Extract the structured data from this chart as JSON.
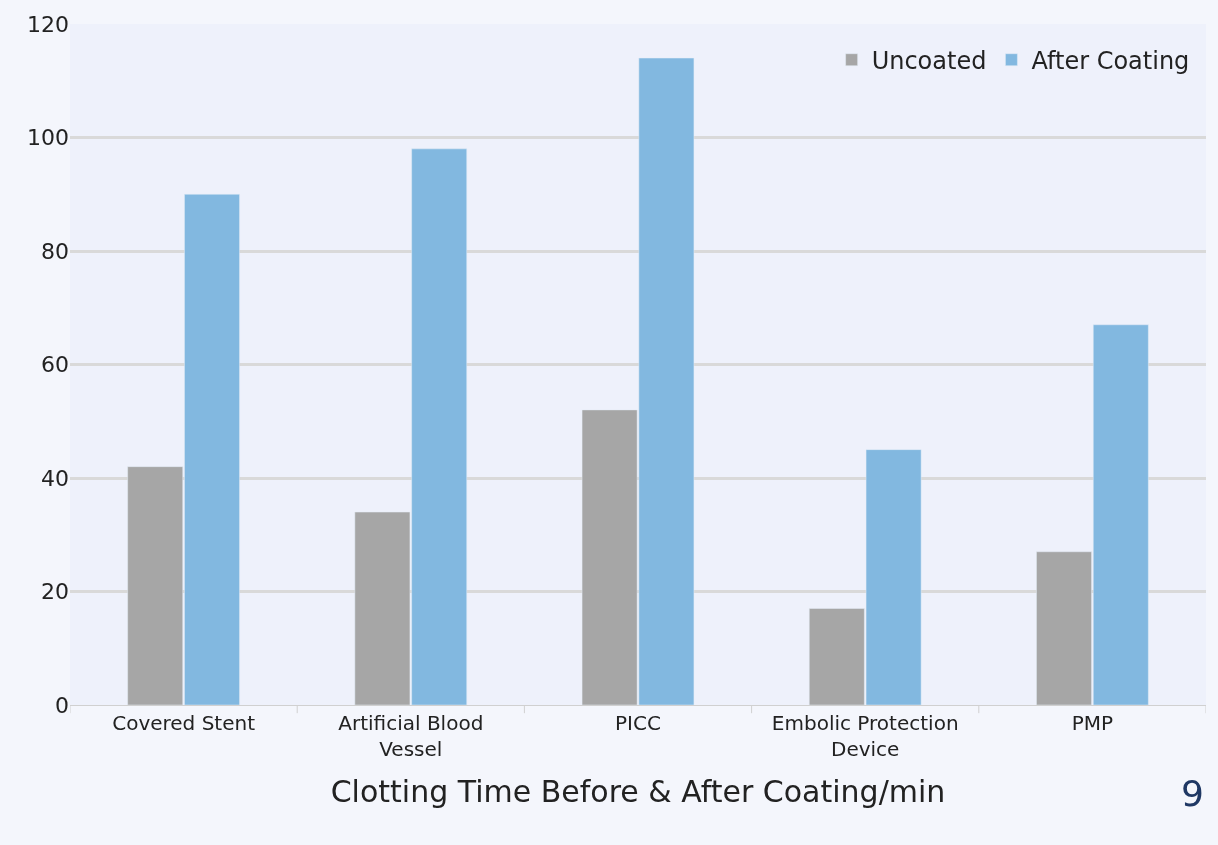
{
  "chart_data": {
    "type": "bar",
    "xlabel": "Clotting Time Before & After Coating/min",
    "categories": [
      "Covered Stent",
      "Artificial Blood Vessel",
      "PICC",
      "Embolic Protection Device",
      "PMP"
    ],
    "series": [
      {
        "name": "Uncoated",
        "color": "#a6a6a6",
        "values": [
          42,
          34,
          52,
          17,
          27
        ]
      },
      {
        "name": "After Coating",
        "color": "#82b8e0",
        "values": [
          90,
          98,
          114,
          45,
          67
        ]
      }
    ],
    "ylim": [
      0,
      120
    ],
    "yticks": [
      0,
      20,
      40,
      60,
      80,
      100,
      120
    ],
    "grid": "y",
    "legend": "top right",
    "annotations": [
      "9"
    ]
  }
}
